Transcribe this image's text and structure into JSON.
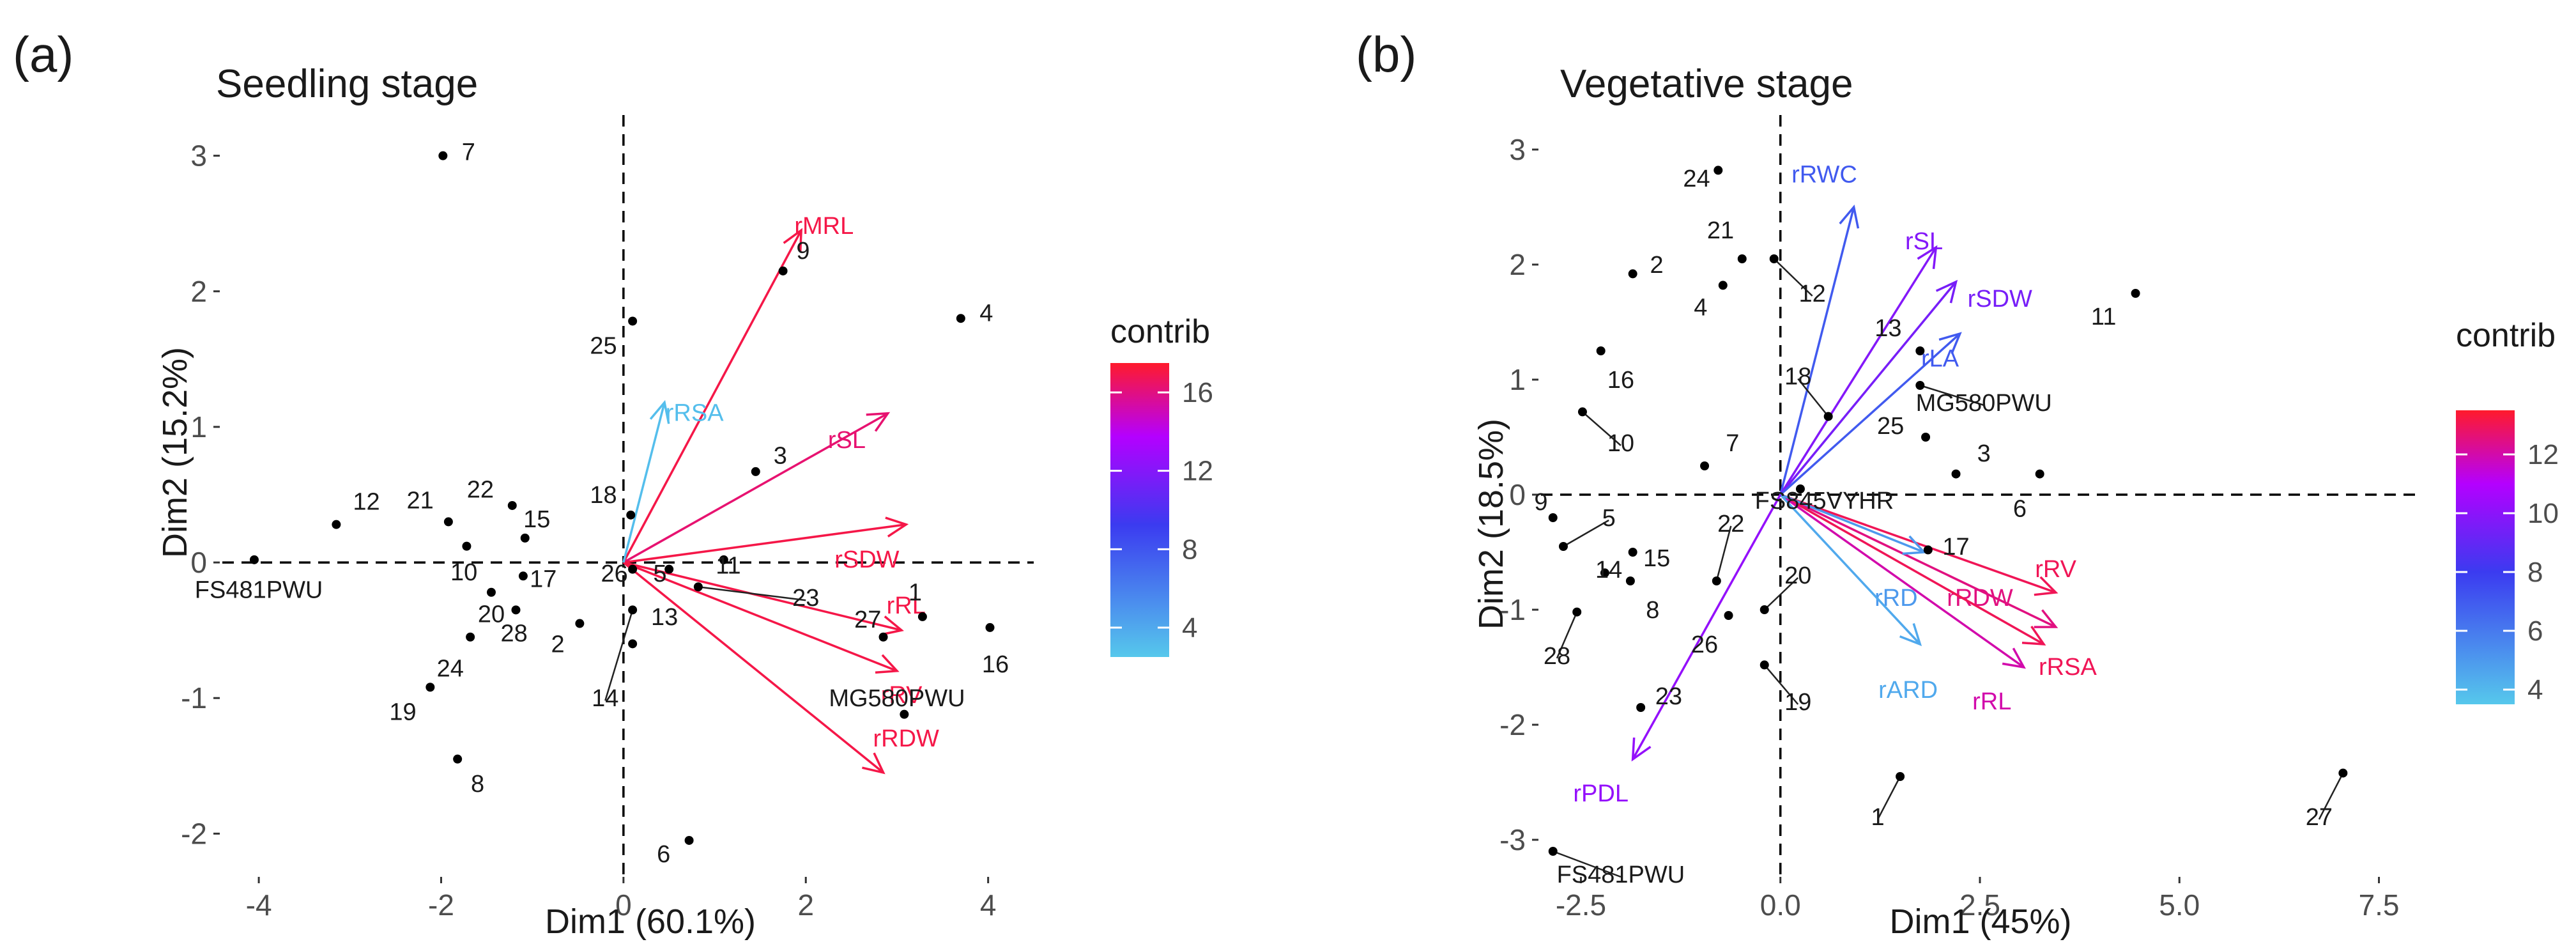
{
  "chart_data": [
    {
      "type": "scatter",
      "plot": "pca-biplot",
      "panel_tag": "(a)",
      "title": "Seedling stage",
      "xlabel": "Dim1 (60.1%)",
      "ylabel": "Dim2 (15.2%)",
      "xlim": [
        -4.4,
        4.5
      ],
      "ylim": [
        -2.3,
        3.3
      ],
      "xticks": [
        -4,
        -2,
        0,
        2,
        4
      ],
      "xtick_labels": [
        "-4",
        "-2",
        "0",
        "2",
        "4"
      ],
      "yticks": [
        -2,
        -1,
        0,
        1,
        2,
        3
      ],
      "ytick_labels": [
        "-2",
        "-1",
        "0",
        "1",
        "2",
        "3"
      ],
      "legend": {
        "title": "contrib",
        "min": 2.5,
        "max": 17.5,
        "ticks": [
          4,
          8,
          12,
          16
        ],
        "tick_labels": [
          "4",
          "8",
          "12",
          "16"
        ],
        "position": "right"
      },
      "individuals": [
        {
          "label": "1",
          "x": 3.28,
          "y": -0.4,
          "lx": 3.2,
          "ly": -0.22
        },
        {
          "label": "2",
          "x": -0.48,
          "y": -0.45,
          "lx": -0.72,
          "ly": -0.6
        },
        {
          "label": "4",
          "x": 3.7,
          "y": 1.8,
          "lx": 3.98,
          "ly": 1.84
        },
        {
          "label": "5",
          "x": 0.5,
          "y": -0.05,
          "lx": 0.4,
          "ly": -0.08
        },
        {
          "label": "6",
          "x": 0.72,
          "y": -2.05,
          "lx": 0.44,
          "ly": -2.15
        },
        {
          "label": "7",
          "x": -1.98,
          "y": 3.0,
          "lx": -1.7,
          "ly": 3.03
        },
        {
          "label": "8",
          "x": -1.82,
          "y": -1.45,
          "lx": -1.6,
          "ly": -1.63
        },
        {
          "label": "10",
          "x": -1.72,
          "y": 0.12,
          "lx": -1.75,
          "ly": -0.07
        },
        {
          "label": "11",
          "x": 1.1,
          "y": 0.02,
          "lx": 1.15,
          "ly": -0.02
        },
        {
          "label": "12",
          "x": -3.15,
          "y": 0.28,
          "lx": -2.82,
          "ly": 0.45
        },
        {
          "label": "13",
          "x": 0.1,
          "y": -0.6,
          "lx": 0.45,
          "ly": -0.4
        },
        {
          "label": "14",
          "x": 0.1,
          "y": -0.35,
          "lx": -0.2,
          "ly": -1.0
        },
        {
          "label": "15",
          "x": -1.08,
          "y": 0.18,
          "lx": -0.95,
          "ly": 0.32
        },
        {
          "label": "16",
          "x": 4.02,
          "y": -0.48,
          "lx": 4.08,
          "ly": -0.75
        },
        {
          "label": "17",
          "x": -1.1,
          "y": -0.1,
          "lx": -0.88,
          "ly": -0.12
        },
        {
          "label": "18",
          "x": 0.08,
          "y": 0.35,
          "lx": -0.22,
          "ly": 0.5
        },
        {
          "label": "19",
          "x": -2.12,
          "y": -0.92,
          "lx": -2.42,
          "ly": -1.1
        },
        {
          "label": "20",
          "x": -1.45,
          "y": -0.22,
          "lx": -1.45,
          "ly": -0.38
        },
        {
          "label": "21",
          "x": -1.92,
          "y": 0.3,
          "lx": -2.23,
          "ly": 0.46
        },
        {
          "label": "22",
          "x": -1.22,
          "y": 0.42,
          "lx": -1.57,
          "ly": 0.54
        },
        {
          "label": "23",
          "x": 0.82,
          "y": -0.18,
          "lx": 2.0,
          "ly": -0.26
        },
        {
          "label": "24",
          "x": -1.68,
          "y": -0.55,
          "lx": -1.9,
          "ly": -0.78
        },
        {
          "label": "25",
          "x": 0.1,
          "y": 1.78,
          "lx": -0.22,
          "ly": 1.6
        },
        {
          "label": "26",
          "x": 0.1,
          "y": -0.05,
          "lx": -0.1,
          "ly": -0.08
        },
        {
          "label": "27",
          "x": 2.85,
          "y": -0.55,
          "lx": 2.68,
          "ly": -0.42
        },
        {
          "label": "28",
          "x": -1.18,
          "y": -0.35,
          "lx": -1.2,
          "ly": -0.52
        },
        {
          "label": "3",
          "x": 1.45,
          "y": 0.67,
          "lx": 1.72,
          "ly": 0.79
        },
        {
          "label": "9",
          "x": 1.75,
          "y": 2.15,
          "lx": 1.97,
          "ly": 2.3
        },
        {
          "label": "FS481PWU",
          "x": -4.05,
          "y": 0.02,
          "lx": -4.0,
          "ly": -0.2
        },
        {
          "label": "MG580PWU",
          "x": 3.08,
          "y": -1.12,
          "lx": 3.0,
          "ly": -1.0
        }
      ],
      "variables": [
        {
          "label": "rMRL",
          "x": 1.95,
          "y": 2.45,
          "contrib": 17.0,
          "lx": 2.2,
          "ly": 2.48
        },
        {
          "label": "rSL",
          "x": 2.9,
          "y": 1.1,
          "contrib": 16.3,
          "lx": 2.45,
          "ly": 0.9
        },
        {
          "label": "rSDW",
          "x": 3.1,
          "y": 0.28,
          "contrib": 17.0,
          "lx": 2.67,
          "ly": 0.02
        },
        {
          "label": "rRL",
          "x": 3.05,
          "y": -0.5,
          "contrib": 17.0,
          "lx": 3.1,
          "ly": -0.32
        },
        {
          "label": "rRV",
          "x": 3.0,
          "y": -0.8,
          "contrib": 17.0,
          "lx": 3.05,
          "ly": -0.98
        },
        {
          "label": "rRDW",
          "x": 2.85,
          "y": -1.55,
          "contrib": 17.0,
          "lx": 3.1,
          "ly": -1.3
        },
        {
          "label": "rRSA",
          "x": 0.45,
          "y": 1.18,
          "contrib": 3.0,
          "lx": 0.78,
          "ly": 1.1
        }
      ]
    },
    {
      "type": "scatter",
      "plot": "pca-biplot",
      "panel_tag": "(b)",
      "title": "Vegetative stage",
      "xlabel": "Dim1 (45%)",
      "ylabel": "Dim2 (18.5%)",
      "xlim": [
        -3.0,
        8.0
      ],
      "ylim": [
        -3.3,
        3.3
      ],
      "xticks": [
        -2.5,
        0,
        2.5,
        5,
        7.5
      ],
      "xtick_labels": [
        "-2.5",
        "0.0",
        "2.5",
        "5.0",
        "7.5"
      ],
      "yticks": [
        -3,
        -2,
        -1,
        0,
        1,
        2,
        3
      ],
      "ytick_labels": [
        "-3",
        "-2",
        "-1",
        "0",
        "1",
        "2",
        "3"
      ],
      "legend": {
        "title": "contrib",
        "min": 3.5,
        "max": 13.5,
        "ticks": [
          4,
          6,
          8,
          10,
          12
        ],
        "tick_labels": [
          "4",
          "6",
          "8",
          "10",
          "12"
        ],
        "position": "right"
      },
      "individuals": [
        {
          "label": "24",
          "x": -0.78,
          "y": 2.82,
          "lx": -1.05,
          "ly": 2.75
        },
        {
          "label": "21",
          "x": -0.48,
          "y": 2.05,
          "lx": -0.75,
          "ly": 2.3
        },
        {
          "label": "2",
          "x": -1.85,
          "y": 1.92,
          "lx": -1.55,
          "ly": 2.0
        },
        {
          "label": "4",
          "x": -0.72,
          "y": 1.82,
          "lx": -1.0,
          "ly": 1.63
        },
        {
          "label": "12",
          "x": -0.08,
          "y": 2.05,
          "lx": 0.4,
          "ly": 1.75
        },
        {
          "label": "16",
          "x": -2.25,
          "y": 1.25,
          "lx": -2.0,
          "ly": 1.0
        },
        {
          "label": "10",
          "x": -2.48,
          "y": 0.72,
          "lx": -2.0,
          "ly": 0.45
        },
        {
          "label": "7",
          "x": -0.95,
          "y": 0.25,
          "lx": -0.6,
          "ly": 0.45
        },
        {
          "label": "18",
          "x": 0.6,
          "y": 0.68,
          "lx": 0.22,
          "ly": 1.03
        },
        {
          "label": "13",
          "x": 1.75,
          "y": 1.25,
          "lx": 1.35,
          "ly": 1.45
        },
        {
          "label": "25",
          "x": 1.82,
          "y": 0.5,
          "lx": 1.38,
          "ly": 0.6
        },
        {
          "label": "3",
          "x": 2.2,
          "y": 0.18,
          "lx": 2.55,
          "ly": 0.36
        },
        {
          "label": "6",
          "x": 3.25,
          "y": 0.18,
          "lx": 3.0,
          "ly": -0.12
        },
        {
          "label": "11",
          "x": 4.45,
          "y": 1.75,
          "lx": 4.05,
          "ly": 1.55
        },
        {
          "label": "9",
          "x": -2.85,
          "y": -0.2,
          "lx": -3.0,
          "ly": -0.06
        },
        {
          "label": "5",
          "x": -2.72,
          "y": -0.45,
          "lx": -2.15,
          "ly": -0.2
        },
        {
          "label": "14",
          "x": -2.2,
          "y": -0.68,
          "lx": -2.15,
          "ly": -0.65
        },
        {
          "label": "15",
          "x": -1.85,
          "y": -0.5,
          "lx": -1.55,
          "ly": -0.55
        },
        {
          "label": "22",
          "x": -0.8,
          "y": -0.75,
          "lx": -0.62,
          "ly": -0.25
        },
        {
          "label": "8",
          "x": -1.88,
          "y": -0.75,
          "lx": -1.6,
          "ly": -1.0
        },
        {
          "label": "28",
          "x": -2.55,
          "y": -1.02,
          "lx": -2.8,
          "ly": -1.4
        },
        {
          "label": "26",
          "x": -0.65,
          "y": -1.05,
          "lx": -0.95,
          "ly": -1.3
        },
        {
          "label": "20",
          "x": -0.2,
          "y": -1.0,
          "lx": 0.22,
          "ly": -0.7
        },
        {
          "label": "23",
          "x": -1.75,
          "y": -1.85,
          "lx": -1.4,
          "ly": -1.75
        },
        {
          "label": "19",
          "x": -0.2,
          "y": -1.48,
          "lx": 0.22,
          "ly": -1.8
        },
        {
          "label": "17",
          "x": 1.85,
          "y": -0.48,
          "lx": 2.2,
          "ly": -0.45
        },
        {
          "label": "1",
          "x": 1.5,
          "y": -2.45,
          "lx": 1.22,
          "ly": -2.8
        },
        {
          "label": "27",
          "x": 7.05,
          "y": -2.42,
          "lx": 6.75,
          "ly": -2.8
        },
        {
          "label": "MG580PWU",
          "x": 1.75,
          "y": 0.95,
          "lx": 2.55,
          "ly": 0.8
        },
        {
          "label": "FS845VYHR",
          "x": 0.25,
          "y": 0.05,
          "lx": 0.55,
          "ly": -0.05
        },
        {
          "label": "FS481PWU",
          "x": -2.85,
          "y": -3.1,
          "lx": -2.0,
          "ly": -3.3
        }
      ],
      "variables": [
        {
          "label": "rRWC",
          "x": 0.92,
          "y": 2.5,
          "contrib": 7.0,
          "lx": 0.55,
          "ly": 2.78
        },
        {
          "label": "rSL",
          "x": 1.95,
          "y": 2.15,
          "contrib": 9.8,
          "lx": 1.8,
          "ly": 2.2
        },
        {
          "label": "rSDW",
          "x": 2.2,
          "y": 1.85,
          "contrib": 9.5,
          "lx": 2.75,
          "ly": 1.7
        },
        {
          "label": "rLA",
          "x": 2.25,
          "y": 1.4,
          "contrib": 7.0,
          "lx": 2.0,
          "ly": 1.18
        },
        {
          "label": "rRV",
          "x": 3.45,
          "y": -0.85,
          "contrib": 13.0,
          "lx": 3.45,
          "ly": -0.65
        },
        {
          "label": "rRDW",
          "x": 3.45,
          "y": -1.15,
          "contrib": 12.5,
          "lx": 2.5,
          "ly": -0.9
        },
        {
          "label": "rRSA",
          "x": 3.3,
          "y": -1.3,
          "contrib": 13.0,
          "lx": 3.6,
          "ly": -1.5
        },
        {
          "label": "rRL",
          "x": 3.05,
          "y": -1.5,
          "contrib": 12.0,
          "lx": 2.65,
          "ly": -1.8
        },
        {
          "label": "rRD",
          "x": 1.8,
          "y": -0.5,
          "contrib": 5.0,
          "lx": 1.45,
          "ly": -0.9
        },
        {
          "label": "rARD",
          "x": 1.75,
          "y": -1.3,
          "contrib": 4.5,
          "lx": 1.6,
          "ly": -1.7
        },
        {
          "label": "rPDL",
          "x": -1.85,
          "y": -2.3,
          "contrib": 10.2,
          "lx": -2.25,
          "ly": -2.6
        }
      ]
    }
  ]
}
